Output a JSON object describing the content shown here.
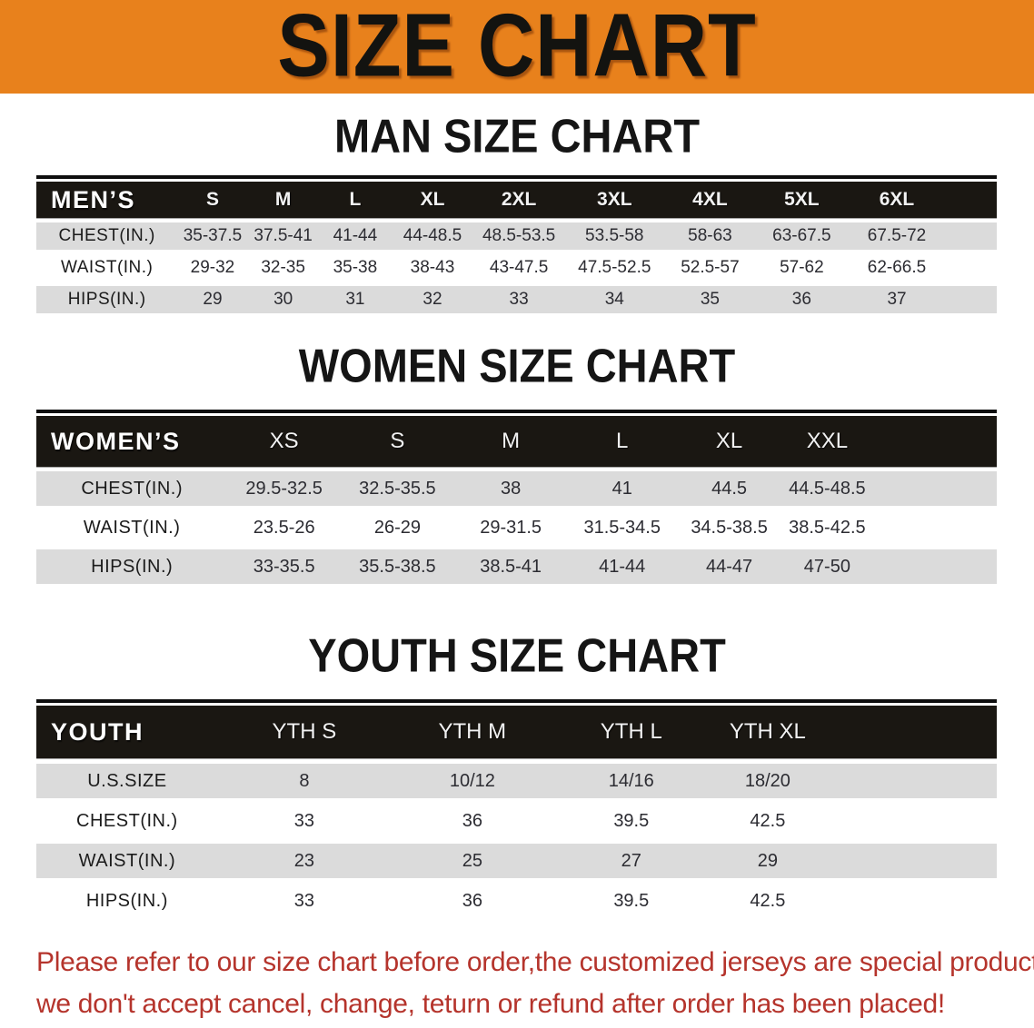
{
  "banner": {
    "title": "SIZE CHART"
  },
  "sections": [
    {
      "heading": "MAN SIZE CHART",
      "table": {
        "header_label": "MEN’S",
        "columns": [
          "S",
          "M",
          "L",
          "XL",
          "2XL",
          "3XL",
          "4XL",
          "5XL",
          "6XL"
        ],
        "rows": [
          {
            "label": "CHEST(IN.)",
            "values": [
              "35-37.5",
              "37.5-41",
              "41-44",
              "44-48.5",
              "48.5-53.5",
              "53.5-58",
              "58-63",
              "63-67.5",
              "67.5-72"
            ]
          },
          {
            "label": "WAIST(IN.)",
            "values": [
              "29-32",
              "32-35",
              "35-38",
              "38-43",
              "43-47.5",
              "47.5-52.5",
              "52.5-57",
              "57-62",
              "62-66.5"
            ]
          },
          {
            "label": "HIPS(IN.)",
            "values": [
              "29",
              "30",
              "31",
              "32",
              "33",
              "34",
              "35",
              "36",
              "37"
            ]
          }
        ]
      }
    },
    {
      "heading": "WOMEN SIZE CHART",
      "table": {
        "header_label": "WOMEN’S",
        "columns": [
          "XS",
          "S",
          "M",
          "L",
          "XL",
          "XXL"
        ],
        "rows": [
          {
            "label": "CHEST(IN.)",
            "values": [
              "29.5-32.5",
              "32.5-35.5",
              "38",
              "41",
              "44.5",
              "44.5-48.5"
            ]
          },
          {
            "label": "WAIST(IN.)",
            "values": [
              "23.5-26",
              "26-29",
              "29-31.5",
              "31.5-34.5",
              "34.5-38.5",
              "38.5-42.5"
            ]
          },
          {
            "label": "HIPS(IN.)",
            "values": [
              "33-35.5",
              "35.5-38.5",
              "38.5-41",
              "41-44",
              "44-47",
              "47-50"
            ]
          }
        ]
      }
    },
    {
      "heading": "YOUTH SIZE CHART",
      "table": {
        "header_label": "YOUTH",
        "columns": [
          "YTH S",
          "YTH M",
          "YTH L",
          "YTH XL"
        ],
        "rows": [
          {
            "label": "U.S.SIZE",
            "values": [
              "8",
              "10/12",
              "14/16",
              "18/20"
            ]
          },
          {
            "label": "CHEST(IN.)",
            "values": [
              "33",
              "36",
              "39.5",
              "42.5"
            ]
          },
          {
            "label": "WAIST(IN.)",
            "values": [
              "23",
              "25",
              "27",
              "29"
            ]
          },
          {
            "label": "HIPS(IN.)",
            "values": [
              "33",
              "36",
              "39.5",
              "42.5"
            ]
          }
        ]
      }
    }
  ],
  "footer": {
    "line1": "Please refer to our size chart before order,the customized jerseys are special products,",
    "line2": "we don't accept cancel, change, teturn or refund after order has been placed!"
  },
  "colors": {
    "banner_bg": "#E8811C",
    "header_bg": "#1A1712",
    "row_alt": "#DBDBDB",
    "footer_red": "#B5342C"
  }
}
